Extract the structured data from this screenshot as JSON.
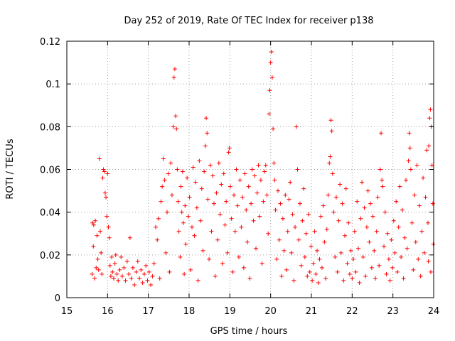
{
  "chart_data": {
    "type": "scatter",
    "title": "Day 252 of 2019, Rate Of TEC Index for receiver p138",
    "xlabel": "GPS time / hours",
    "ylabel": "ROTI / TECUs",
    "xlim": [
      15,
      24
    ],
    "ylim": [
      0,
      0.12
    ],
    "xticks": [
      15,
      16,
      17,
      18,
      19,
      20,
      21,
      22,
      23,
      24
    ],
    "yticks": [
      0,
      0.02,
      0.04,
      0.06,
      0.08,
      0.1,
      0.12
    ],
    "xtick_labels": [
      "15",
      "16",
      "17",
      "18",
      "19",
      "20",
      "21",
      "22",
      "23",
      "24"
    ],
    "ytick_labels": [
      "0",
      "0.02",
      "0.04",
      "0.06",
      "0.08",
      "0.1",
      "0.12"
    ],
    "grid": true,
    "marker": "+",
    "color": "#ff0000",
    "series": [
      {
        "name": "ROTI",
        "points": [
          [
            15.62,
            0.011
          ],
          [
            15.63,
            0.035
          ],
          [
            15.65,
            0.024
          ],
          [
            15.66,
            0.034
          ],
          [
            15.68,
            0.009
          ],
          [
            15.7,
            0.036
          ],
          [
            15.72,
            0.014
          ],
          [
            15.74,
            0.029
          ],
          [
            15.76,
            0.018
          ],
          [
            15.78,
            0.013
          ],
          [
            15.8,
            0.065
          ],
          [
            15.82,
            0.031
          ],
          [
            15.84,
            0.021
          ],
          [
            15.86,
            0.011
          ],
          [
            15.88,
            0.056
          ],
          [
            15.9,
            0.06
          ],
          [
            15.92,
            0.059
          ],
          [
            15.94,
            0.049
          ],
          [
            15.96,
            0.047
          ],
          [
            15.98,
            0.038
          ],
          [
            16.0,
            0.058
          ],
          [
            16.02,
            0.033
          ],
          [
            16.04,
            0.028
          ],
          [
            16.06,
            0.015
          ],
          [
            16.08,
            0.01
          ],
          [
            16.1,
            0.019
          ],
          [
            16.12,
            0.012
          ],
          [
            16.15,
            0.009
          ],
          [
            16.18,
            0.016
          ],
          [
            16.2,
            0.02
          ],
          [
            16.23,
            0.011
          ],
          [
            16.26,
            0.008
          ],
          [
            16.3,
            0.013
          ],
          [
            16.33,
            0.019
          ],
          [
            16.36,
            0.01
          ],
          [
            16.4,
            0.014
          ],
          [
            16.44,
            0.008
          ],
          [
            16.48,
            0.017
          ],
          [
            16.52,
            0.011
          ],
          [
            16.55,
            0.028
          ],
          [
            16.58,
            0.009
          ],
          [
            16.62,
            0.014
          ],
          [
            16.66,
            0.006
          ],
          [
            16.7,
            0.012
          ],
          [
            16.74,
            0.017
          ],
          [
            16.78,
            0.009
          ],
          [
            16.82,
            0.013
          ],
          [
            16.86,
            0.007
          ],
          [
            16.9,
            0.011
          ],
          [
            16.94,
            0.015
          ],
          [
            16.98,
            0.008
          ],
          [
            17.02,
            0.012
          ],
          [
            17.06,
            0.006
          ],
          [
            17.1,
            0.01
          ],
          [
            17.14,
            0.016
          ],
          [
            17.18,
            0.033
          ],
          [
            17.22,
            0.027
          ],
          [
            17.25,
            0.037
          ],
          [
            17.28,
            0.009
          ],
          [
            17.31,
            0.045
          ],
          [
            17.34,
            0.052
          ],
          [
            17.37,
            0.065
          ],
          [
            17.4,
            0.055
          ],
          [
            17.43,
            0.021
          ],
          [
            17.46,
            0.04
          ],
          [
            17.49,
            0.058
          ],
          [
            17.52,
            0.012
          ],
          [
            17.55,
            0.063
          ],
          [
            17.58,
            0.048
          ],
          [
            17.61,
            0.08
          ],
          [
            17.63,
            0.103
          ],
          [
            17.65,
            0.107
          ],
          [
            17.67,
            0.085
          ],
          [
            17.69,
            0.079
          ],
          [
            17.71,
            0.06
          ],
          [
            17.73,
            0.045
          ],
          [
            17.75,
            0.031
          ],
          [
            17.78,
            0.019
          ],
          [
            17.8,
            0.052
          ],
          [
            17.82,
            0.04
          ],
          [
            17.84,
            0.059
          ],
          [
            17.86,
            0.035
          ],
          [
            17.88,
            0.011
          ],
          [
            17.9,
            0.043
          ],
          [
            17.92,
            0.025
          ],
          [
            17.95,
            0.056
          ],
          [
            17.98,
            0.038
          ],
          [
            18.01,
            0.047
          ],
          [
            18.04,
            0.013
          ],
          [
            18.07,
            0.033
          ],
          [
            18.1,
            0.061
          ],
          [
            18.13,
            0.029
          ],
          [
            18.16,
            0.054
          ],
          [
            18.19,
            0.042
          ],
          [
            18.22,
            0.008
          ],
          [
            18.25,
            0.064
          ],
          [
            18.28,
            0.036
          ],
          [
            18.31,
            0.051
          ],
          [
            18.34,
            0.022
          ],
          [
            18.37,
            0.059
          ],
          [
            18.4,
            0.071
          ],
          [
            18.42,
            0.084
          ],
          [
            18.44,
            0.077
          ],
          [
            18.46,
            0.046
          ],
          [
            18.49,
            0.018
          ],
          [
            18.52,
            0.062
          ],
          [
            18.55,
            0.031
          ],
          [
            18.58,
            0.057
          ],
          [
            18.61,
            0.044
          ],
          [
            18.64,
            0.01
          ],
          [
            18.67,
            0.049
          ],
          [
            18.7,
            0.027
          ],
          [
            18.73,
            0.063
          ],
          [
            18.76,
            0.039
          ],
          [
            18.79,
            0.053
          ],
          [
            18.82,
            0.016
          ],
          [
            18.85,
            0.058
          ],
          [
            18.88,
            0.034
          ],
          [
            18.91,
            0.045
          ],
          [
            18.94,
            0.021
          ],
          [
            18.97,
            0.068
          ],
          [
            18.99,
            0.07
          ],
          [
            19.01,
            0.052
          ],
          [
            19.04,
            0.037
          ],
          [
            19.07,
            0.012
          ],
          [
            19.1,
            0.048
          ],
          [
            19.13,
            0.031
          ],
          [
            19.16,
            0.06
          ],
          [
            19.19,
            0.043
          ],
          [
            19.22,
            0.019
          ],
          [
            19.25,
            0.055
          ],
          [
            19.28,
            0.033
          ],
          [
            19.31,
            0.047
          ],
          [
            19.34,
            0.014
          ],
          [
            19.37,
            0.058
          ],
          [
            19.4,
            0.041
          ],
          [
            19.43,
            0.026
          ],
          [
            19.46,
            0.052
          ],
          [
            19.49,
            0.009
          ],
          [
            19.52,
            0.044
          ],
          [
            19.55,
            0.06
          ],
          [
            19.58,
            0.036
          ],
          [
            19.61,
            0.057
          ],
          [
            19.64,
            0.023
          ],
          [
            19.67,
            0.049
          ],
          [
            19.7,
            0.062
          ],
          [
            19.73,
            0.038
          ],
          [
            19.76,
            0.055
          ],
          [
            19.79,
            0.016
          ],
          [
            19.82,
            0.045
          ],
          [
            19.85,
            0.059
          ],
          [
            19.88,
            0.062
          ],
          [
            19.91,
            0.048
          ],
          [
            19.94,
            0.03
          ],
          [
            19.96,
            0.086
          ],
          [
            19.98,
            0.097
          ],
          [
            20.0,
            0.11
          ],
          [
            20.02,
            0.115
          ],
          [
            20.04,
            0.103
          ],
          [
            20.06,
            0.079
          ],
          [
            20.08,
            0.063
          ],
          [
            20.1,
            0.055
          ],
          [
            20.12,
            0.041
          ],
          [
            20.15,
            0.018
          ],
          [
            20.18,
            0.05
          ],
          [
            20.21,
            0.027
          ],
          [
            20.24,
            0.044
          ],
          [
            20.27,
            0.01
          ],
          [
            20.3,
            0.037
          ],
          [
            20.33,
            0.022
          ],
          [
            20.36,
            0.048
          ],
          [
            20.39,
            0.013
          ],
          [
            20.42,
            0.031
          ],
          [
            20.45,
            0.046
          ],
          [
            20.48,
            0.054
          ],
          [
            20.51,
            0.021
          ],
          [
            20.54,
            0.039
          ],
          [
            20.57,
            0.008
          ],
          [
            20.6,
            0.033
          ],
          [
            20.63,
            0.08
          ],
          [
            20.66,
            0.06
          ],
          [
            20.69,
            0.027
          ],
          [
            20.72,
            0.044
          ],
          [
            20.75,
            0.015
          ],
          [
            20.78,
            0.036
          ],
          [
            20.81,
            0.051
          ],
          [
            20.84,
            0.019
          ],
          [
            20.87,
            0.03
          ],
          [
            20.9,
            0.01
          ],
          [
            20.93,
            0.039
          ],
          [
            20.96,
            0.012
          ],
          [
            20.99,
            0.024
          ],
          [
            21.02,
            0.008
          ],
          [
            21.05,
            0.016
          ],
          [
            21.08,
            0.031
          ],
          [
            21.11,
            0.011
          ],
          [
            21.14,
            0.022
          ],
          [
            21.17,
            0.007
          ],
          [
            21.2,
            0.018
          ],
          [
            21.23,
            0.038
          ],
          [
            21.26,
            0.014
          ],
          [
            21.29,
            0.043
          ],
          [
            21.32,
            0.026
          ],
          [
            21.35,
            0.009
          ],
          [
            21.38,
            0.032
          ],
          [
            21.41,
            0.048
          ],
          [
            21.44,
            0.063
          ],
          [
            21.46,
            0.066
          ],
          [
            21.48,
            0.083
          ],
          [
            21.5,
            0.078
          ],
          [
            21.52,
            0.058
          ],
          [
            21.55,
            0.04
          ],
          [
            21.58,
            0.019
          ],
          [
            21.61,
            0.047
          ],
          [
            21.64,
            0.012
          ],
          [
            21.67,
            0.036
          ],
          [
            21.7,
            0.053
          ],
          [
            21.73,
            0.021
          ],
          [
            21.76,
            0.044
          ],
          [
            21.79,
            0.008
          ],
          [
            21.82,
            0.029
          ],
          [
            21.85,
            0.051
          ],
          [
            21.88,
            0.016
          ],
          [
            21.91,
            0.035
          ],
          [
            21.94,
            0.011
          ],
          [
            21.97,
            0.022
          ],
          [
            22.0,
            0.009
          ],
          [
            22.03,
            0.018
          ],
          [
            22.06,
            0.031
          ],
          [
            22.09,
            0.012
          ],
          [
            22.12,
            0.045
          ],
          [
            22.15,
            0.023
          ],
          [
            22.18,
            0.007
          ],
          [
            22.21,
            0.037
          ],
          [
            22.24,
            0.054
          ],
          [
            22.27,
            0.019
          ],
          [
            22.3,
            0.042
          ],
          [
            22.33,
            0.01
          ],
          [
            22.36,
            0.033
          ],
          [
            22.39,
            0.05
          ],
          [
            22.42,
            0.026
          ],
          [
            22.45,
            0.044
          ],
          [
            22.48,
            0.014
          ],
          [
            22.51,
            0.038
          ],
          [
            22.54,
            0.022
          ],
          [
            22.57,
            0.009
          ],
          [
            22.6,
            0.031
          ],
          [
            22.63,
            0.047
          ],
          [
            22.66,
            0.015
          ],
          [
            22.69,
            0.06
          ],
          [
            22.71,
            0.077
          ],
          [
            22.73,
            0.055
          ],
          [
            22.75,
            0.052
          ],
          [
            22.78,
            0.024
          ],
          [
            22.81,
            0.04
          ],
          [
            22.84,
            0.011
          ],
          [
            22.87,
            0.03
          ],
          [
            22.9,
            0.018
          ],
          [
            22.93,
            0.008
          ],
          [
            22.96,
            0.027
          ],
          [
            22.99,
            0.014
          ],
          [
            23.02,
            0.036
          ],
          [
            23.05,
            0.021
          ],
          [
            23.08,
            0.045
          ],
          [
            23.11,
            0.012
          ],
          [
            23.14,
            0.033
          ],
          [
            23.17,
            0.052
          ],
          [
            23.2,
            0.019
          ],
          [
            23.23,
            0.041
          ],
          [
            23.26,
            0.009
          ],
          [
            23.29,
            0.028
          ],
          [
            23.32,
            0.055
          ],
          [
            23.35,
            0.023
          ],
          [
            23.38,
            0.064
          ],
          [
            23.4,
            0.077
          ],
          [
            23.42,
            0.07
          ],
          [
            23.44,
            0.06
          ],
          [
            23.47,
            0.035
          ],
          [
            23.5,
            0.013
          ],
          [
            23.53,
            0.048
          ],
          [
            23.56,
            0.026
          ],
          [
            23.59,
            0.062
          ],
          [
            23.62,
            0.018
          ],
          [
            23.65,
            0.043
          ],
          [
            23.68,
            0.01
          ],
          [
            23.71,
            0.031
          ],
          [
            23.74,
            0.056
          ],
          [
            23.77,
            0.021
          ],
          [
            23.8,
            0.047
          ],
          [
            23.83,
            0.069
          ],
          [
            23.86,
            0.035
          ],
          [
            23.88,
            0.071
          ],
          [
            23.9,
            0.084
          ],
          [
            23.92,
            0.088
          ],
          [
            23.94,
            0.08
          ],
          [
            23.96,
            0.062
          ],
          [
            23.98,
            0.044
          ],
          [
            23.99,
            0.025
          ],
          [
            23.93,
            0.012
          ],
          [
            23.87,
            0.017
          ]
        ]
      }
    ]
  }
}
